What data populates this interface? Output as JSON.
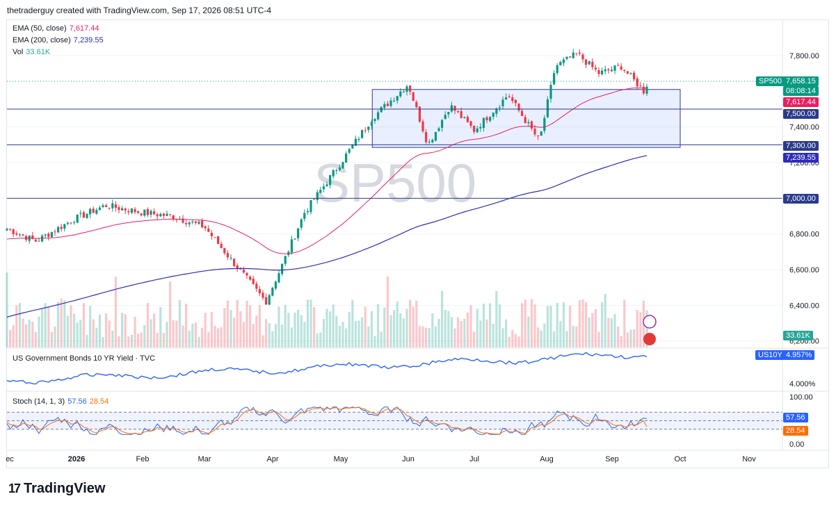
{
  "header": {
    "caption": "thetraderguy created with TradingView.com, Sep 17, 2026 08:51 UTC-4"
  },
  "watermark": "SP500",
  "legend": {
    "ema50": {
      "label": "EMA (50, close)",
      "value": "7,617.44",
      "color": "#e91e63"
    },
    "ema200": {
      "label": "EMA (200, close)",
      "value": "7,239.55",
      "color": "#2f2cb8"
    },
    "vol": {
      "label": "Vol",
      "value": "33.61K",
      "color": "#26a69a"
    }
  },
  "price_axis": {
    "ticks": [
      "7,800.00",
      "7,400.00",
      "7,200.00",
      "6,800.00",
      "6,600.00",
      "6,400.00",
      "6,200.00"
    ],
    "tick_values": [
      7800,
      7400,
      7200,
      6800,
      6600,
      6400,
      6200
    ]
  },
  "tags": {
    "symbol": "SP500",
    "last_price": "7,658.15",
    "countdown": "08:08:14",
    "ema50": "7,617.44",
    "level_7500": "7,500.00",
    "level_7300": "7,300.00",
    "ema200": "7,239.55",
    "level_7000": "7,000.00",
    "vol": "33.61K",
    "us10y_symbol": "US10Y",
    "us10y_value": "4.957%",
    "us10y_axis": "4.000%",
    "stoch_k": "57.56",
    "stoch_d": "28.54",
    "stoch_100": "100.00",
    "stoch_0": "0.00"
  },
  "bond_pane": {
    "title": "US Government Bonds 10 YR Yield · TVC"
  },
  "stoch_pane": {
    "label": "Stoch (14, 1, 3)",
    "k": "57.56",
    "d": "28.54"
  },
  "time_axis": {
    "labels": [
      "ec",
      "2026",
      "Feb",
      "Mar",
      "Apr",
      "May",
      "Jun",
      "Jul",
      "Aug",
      "Sep",
      "Oct",
      "Nov"
    ]
  },
  "footer": {
    "brand": "TradingView"
  },
  "chart_data": {
    "type": "candlestick",
    "series_levels": [
      7500,
      7300,
      7000
    ],
    "range_box": {
      "from": "May 15",
      "to": "Oct 01",
      "top": 7610,
      "bottom": 7285
    },
    "ylim": [
      6150,
      7900
    ],
    "anchor_closes": [
      {
        "x": "Dec 10",
        "close": 6840
      },
      {
        "x": "Dec 20",
        "close": 6760
      },
      {
        "x": "Jan 01",
        "close": 6880
      },
      {
        "x": "Jan 15",
        "close": 6960
      },
      {
        "x": "Feb 01",
        "close": 6920
      },
      {
        "x": "Feb 15",
        "close": 6900
      },
      {
        "x": "Mar 01",
        "close": 6840
      },
      {
        "x": "Mar 15",
        "close": 6620
      },
      {
        "x": "Mar 28",
        "close": 6420
      },
      {
        "x": "Apr 05",
        "close": 6620
      },
      {
        "x": "Apr 15",
        "close": 6920
      },
      {
        "x": "May 01",
        "close": 7200
      },
      {
        "x": "May 15",
        "close": 7450
      },
      {
        "x": "Jun 01",
        "close": 7640
      },
      {
        "x": "Jun 10",
        "close": 7300
      },
      {
        "x": "Jun 20",
        "close": 7520
      },
      {
        "x": "Jul 01",
        "close": 7380
      },
      {
        "x": "Jul 15",
        "close": 7580
      },
      {
        "x": "Jul 28",
        "close": 7320
      },
      {
        "x": "Aug 05",
        "close": 7740
      },
      {
        "x": "Aug 15",
        "close": 7810
      },
      {
        "x": "Aug 25",
        "close": 7700
      },
      {
        "x": "Sep 05",
        "close": 7740
      },
      {
        "x": "Sep 15",
        "close": 7600
      },
      {
        "x": "Sep 17",
        "close": 7658
      }
    ],
    "ema50_last": 7617.44,
    "ema200_last": 7239.55,
    "us10y_last": 4.957,
    "stoch_k_last": 57.56,
    "stoch_d_last": 28.54
  }
}
